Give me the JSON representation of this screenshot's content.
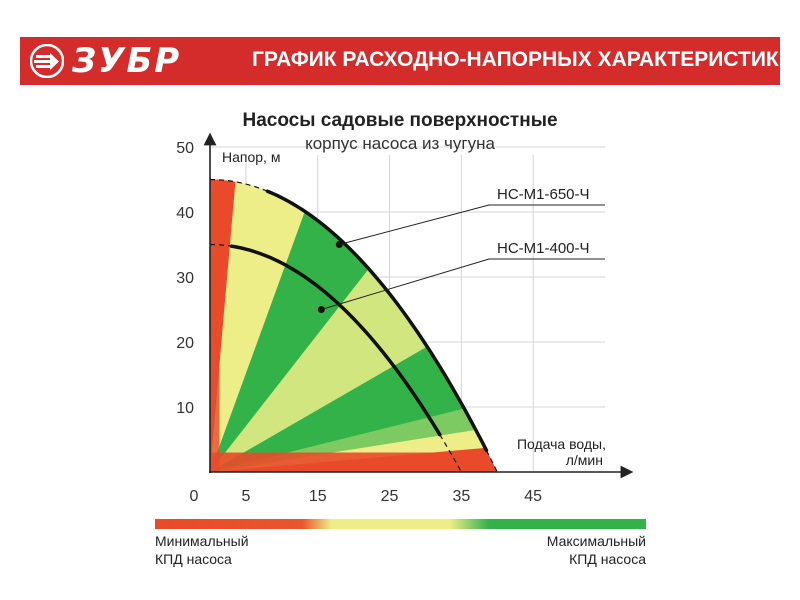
{
  "header": {
    "brand": "ЗУБР",
    "title": "ГРАФИК РАСХОДНО-НАПОРНЫХ ХАРАКТЕРИСТИК",
    "colors": {
      "banner": "#d42b2b",
      "text": "#ffffff"
    },
    "logo_icon": "zubr-arrow-logo"
  },
  "chart_data": {
    "type": "line",
    "title": "Насосы садовые поверхностные",
    "subtitle": "корпус насоса из чугуна",
    "ylabel": "Напор, м",
    "xlabel": "Подача воды, л/мин",
    "xlim": [
      0,
      55
    ],
    "ylim": [
      0,
      50
    ],
    "x_ticks": [
      0,
      5,
      15,
      25,
      35,
      45
    ],
    "y_ticks": [
      10,
      20,
      30,
      40,
      50
    ],
    "grid": true,
    "series": [
      {
        "name": "НС-М1-650-Ч",
        "shutoff_head": 45,
        "max_flow": 40,
        "solid_range": [
          8,
          38.5
        ],
        "marker": [
          18,
          35
        ]
      },
      {
        "name": "НС-М1-400-Ч",
        "shutoff_head": 35,
        "max_flow": 35,
        "solid_range": [
          3,
          32
        ],
        "marker": [
          15.5,
          25
        ]
      }
    ],
    "efficiency_colors": {
      "min": "#e84a2a",
      "mid": "#eeee88",
      "max": "#33b24a"
    }
  },
  "legend": {
    "min_line1": "Минимальный",
    "min_line2": "КПД насоса",
    "max_line1": "Максимальный",
    "max_line2": "КПД насоса"
  }
}
